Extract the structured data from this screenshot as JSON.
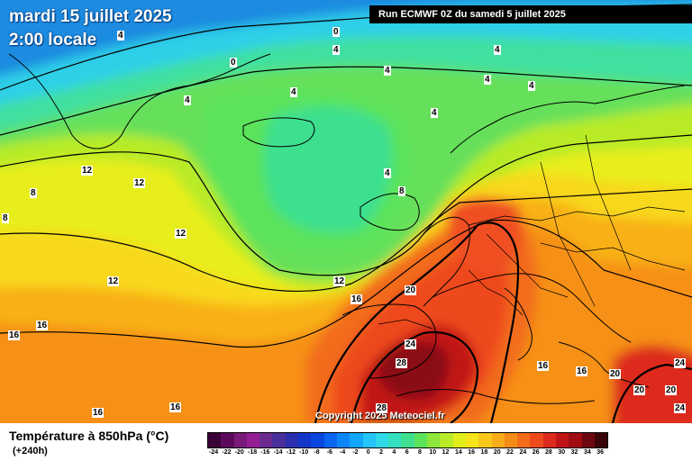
{
  "header": {
    "date_label": "mardi 15 juillet 2025",
    "time_label": "2:00 locale",
    "run_label": "Run ECMWF 0Z du samedi 5 juillet 2025"
  },
  "copyright": "Copyright 2025 Meteociel.fr",
  "legend": {
    "title": "Température à 850hPa (°C)",
    "subtitle": "(+240h)",
    "ticks": [
      "-24",
      "-22",
      "-20",
      "-18",
      "-16",
      "-14",
      "-12",
      "-10",
      "-8",
      "-6",
      "-4",
      "-2",
      "0",
      "2",
      "4",
      "6",
      "8",
      "10",
      "12",
      "14",
      "16",
      "18",
      "20",
      "22",
      "24",
      "26",
      "28",
      "30",
      "32",
      "34",
      "36"
    ],
    "colors": [
      "#3b0038",
      "#5c0a5c",
      "#7a1a7a",
      "#951e95",
      "#6a2a8f",
      "#4a2f9a",
      "#2b2fb0",
      "#1436c8",
      "#0a46e0",
      "#0a66f0",
      "#0a86f7",
      "#12a6fb",
      "#25c4fb",
      "#2fd9e8",
      "#35e0c0",
      "#3ee08f",
      "#5ce35c",
      "#8ce63b",
      "#b8eb28",
      "#e2ee1a",
      "#f6e41a",
      "#f8c81a",
      "#f8ac18",
      "#f68c18",
      "#f26c1a",
      "#ee4a1c",
      "#dd2a1c",
      "#c21416",
      "#a00c12",
      "#6e0810",
      "#3a0408"
    ]
  },
  "isotherm_labels": [
    "0",
    "0",
    "4",
    "4",
    "4",
    "4",
    "4",
    "4",
    "4",
    "4",
    "4",
    "4",
    "8",
    "8",
    "8",
    "12",
    "12",
    "12",
    "12",
    "12",
    "16",
    "16",
    "16",
    "16",
    "16",
    "16",
    "16",
    "20",
    "20",
    "20",
    "20",
    "24",
    "24",
    "24",
    "28",
    "28"
  ],
  "map": {
    "field": "temperature_850hPa",
    "unit": "°C",
    "colors": {
      "ocean_cold": "#1a8be0",
      "border": "#000000",
      "coast": "#000000"
    }
  }
}
